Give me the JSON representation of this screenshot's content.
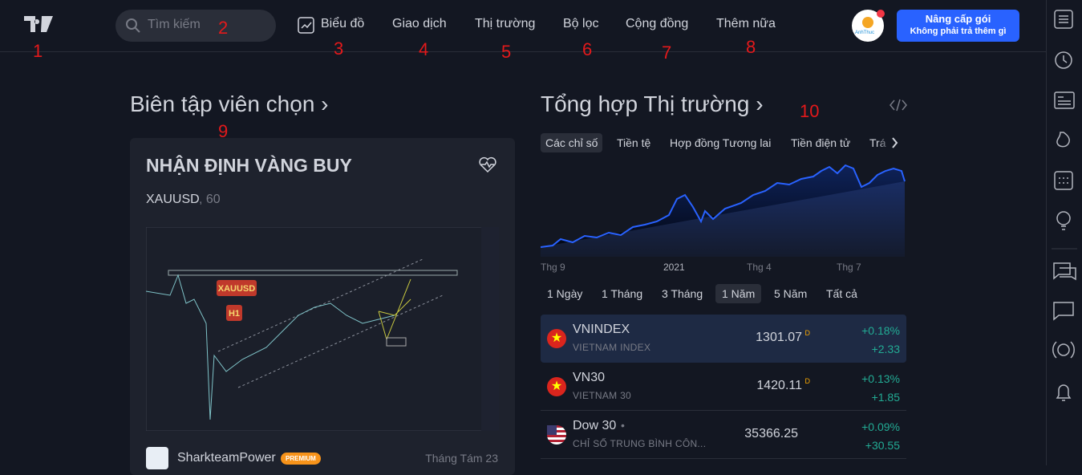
{
  "nav": {
    "search_placeholder": "Tìm kiếm",
    "items": [
      "Biểu đồ",
      "Giao dịch",
      "Thị trường",
      "Bộ lọc",
      "Cộng đồng",
      "Thêm nữa"
    ],
    "avatar_label": "AnhThuc",
    "upgrade": {
      "title": "Nâng cấp gói",
      "subtitle": "Không phải trả thêm gì"
    }
  },
  "editors_pick": {
    "heading": "Biên tập viên chọn ›",
    "card": {
      "title": "NHẬN ĐỊNH VÀNG BUY",
      "symbol": "XAUUSD",
      "interval": ", 60",
      "chart_labels": [
        "XAUUSD",
        "H1"
      ],
      "author": "SharkteamPower",
      "badge": "PREMIUM",
      "date": "Tháng Tám 23"
    }
  },
  "market": {
    "heading": "Tổng hợp Thị trường ›",
    "tabs": [
      "Các chỉ số",
      "Tiền tệ",
      "Hợp đồng Tương lai",
      "Tiền điện tử",
      "Trá"
    ],
    "axis_labels": [
      "Thg 9",
      "2021",
      "Thg 4",
      "Thg 7"
    ],
    "ranges": [
      "1 Ngày",
      "1 Tháng",
      "3 Tháng",
      "1 Năm",
      "5 Năm",
      "Tất cả"
    ],
    "rows": [
      {
        "symbol": "VNINDEX",
        "name": "VIETNAM INDEX",
        "price": 1301.07,
        "flag": "D",
        "change_pct": "+0.18%",
        "change": "+2.33"
      },
      {
        "symbol": "VN30",
        "name": "VIETNAM 30",
        "price": 1420.11,
        "flag": "D",
        "change_pct": "+0.13%",
        "change": "+1.85"
      },
      {
        "symbol": "Dow 30",
        "name": "CHỈ SỐ TRUNG BÌNH CÔN...",
        "price": 35366.25,
        "change_pct": "+0.09%",
        "change": "+30.55"
      }
    ]
  },
  "annotations": [
    "1",
    "2",
    "3",
    "4",
    "5",
    "6",
    "7",
    "8",
    "9",
    "10"
  ]
}
